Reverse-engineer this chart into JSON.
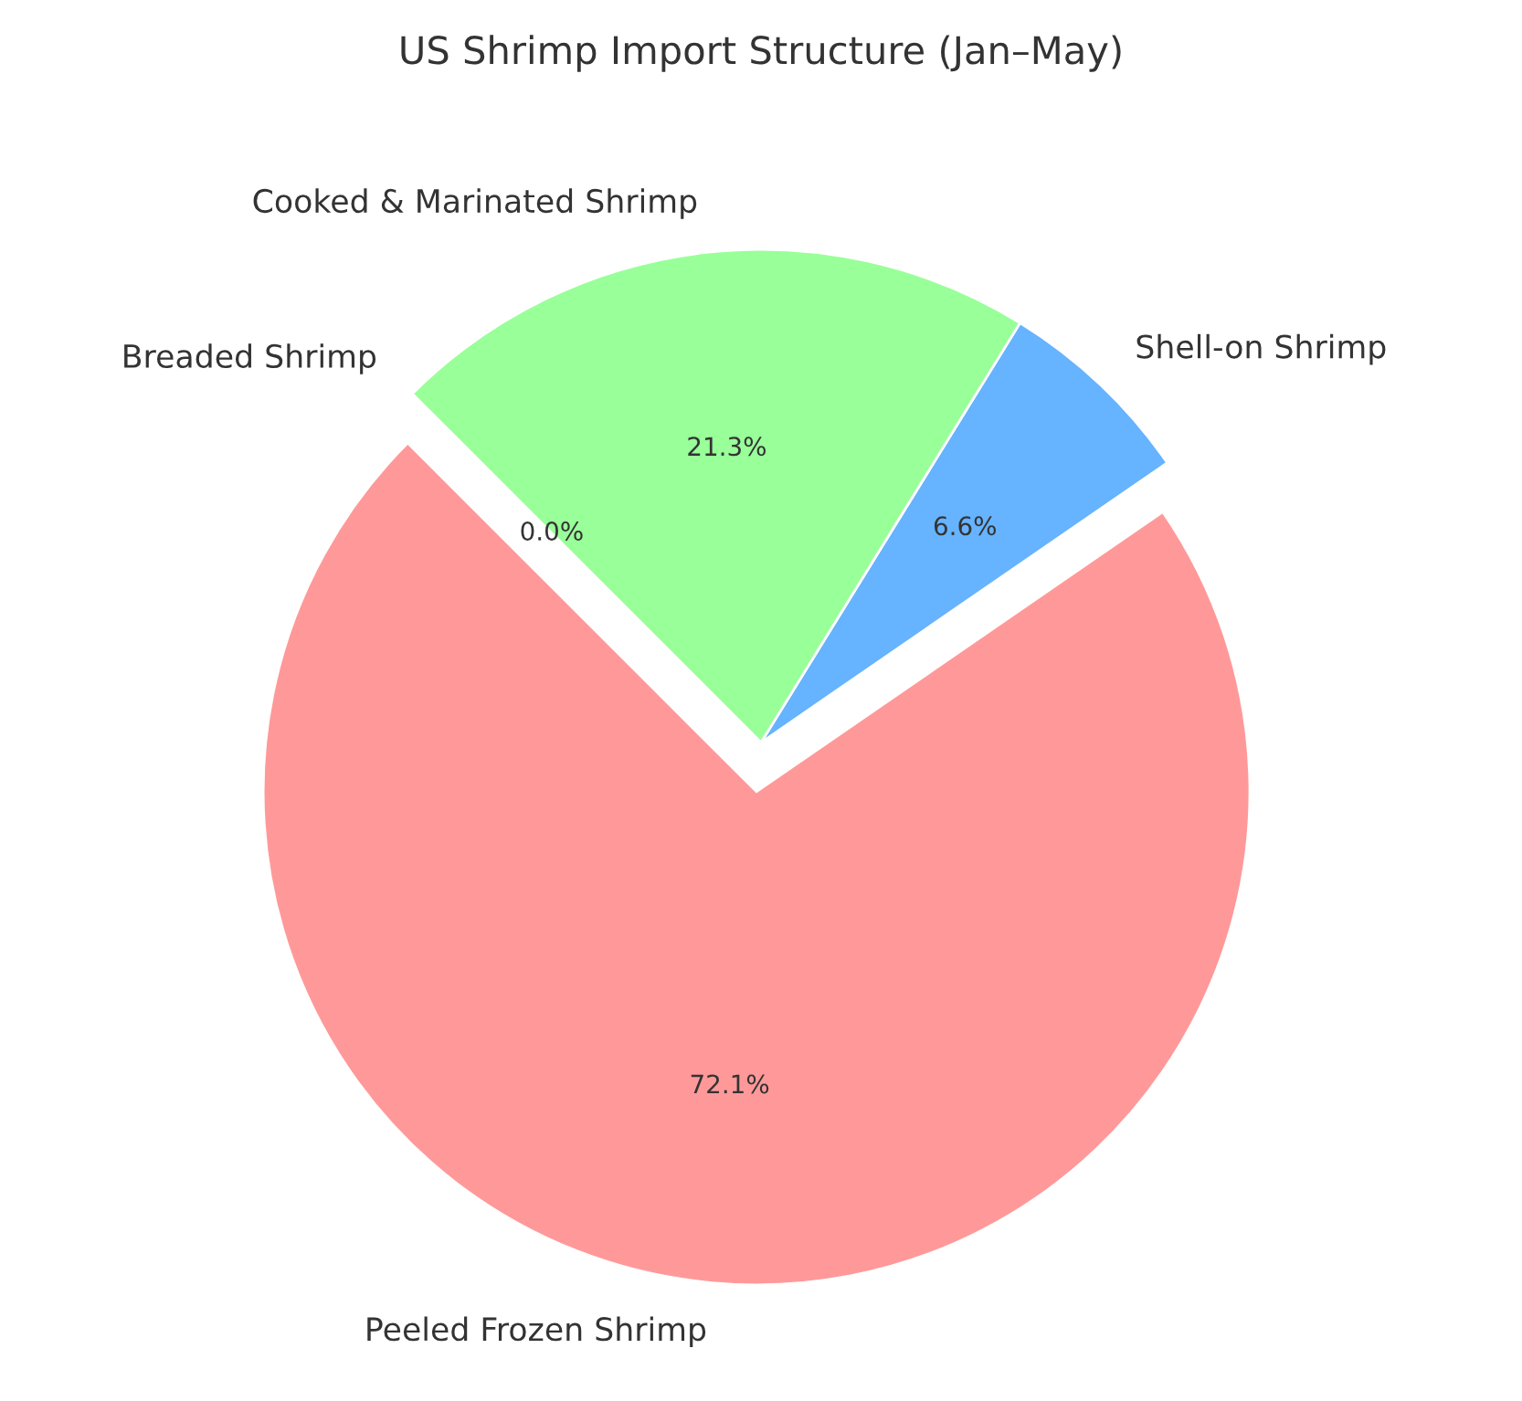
{
  "chart_data": {
    "type": "pie",
    "title": "US Shrimp Import Structure (Jan–May)",
    "categories": [
      "Peeled Frozen Shrimp",
      "Shell-on Shrimp",
      "Cooked & Marinated Shrimp",
      "Breaded Shrimp"
    ],
    "values": [
      72.1,
      6.6,
      21.3,
      0.0
    ],
    "colors": [
      "#ff9999",
      "#66b3ff",
      "#99ff99",
      "#ffcc99"
    ],
    "value_labels": [
      "72.1%",
      "6.6%",
      "21.3%",
      "0.0%"
    ]
  }
}
